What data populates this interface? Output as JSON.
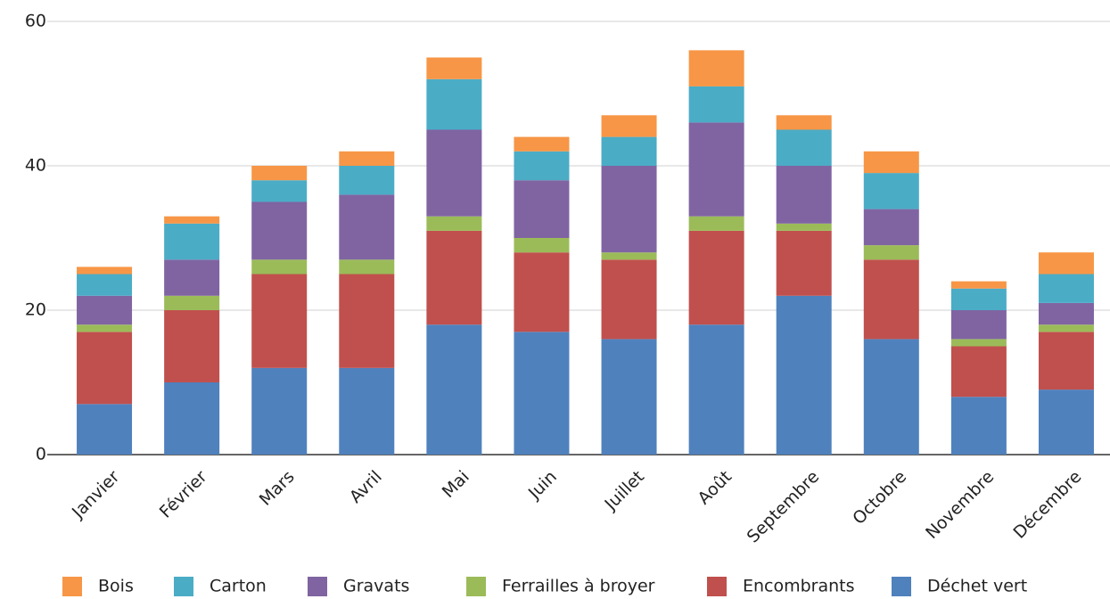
{
  "chart_data": {
    "type": "bar",
    "stacked": true,
    "categories": [
      "Janvier",
      "Février",
      "Mars",
      "Avril",
      "Mai",
      "Juin",
      "Juillet",
      "Août",
      "Septembre",
      "Octobre",
      "Novembre",
      "Décembre"
    ],
    "series": [
      {
        "name": "Déchet vert",
        "color": "#4f81bd",
        "values": [
          7,
          10,
          12,
          12,
          18,
          17,
          16,
          18,
          22,
          16,
          8,
          9
        ]
      },
      {
        "name": "Encombrants",
        "color": "#c0504d",
        "values": [
          10,
          10,
          13,
          13,
          13,
          11,
          11,
          13,
          9,
          11,
          7,
          8
        ]
      },
      {
        "name": "Ferrailles à broyer",
        "color": "#9bbb59",
        "values": [
          1,
          2,
          2,
          2,
          2,
          2,
          1,
          2,
          1,
          2,
          1,
          1
        ]
      },
      {
        "name": "Gravats",
        "color": "#8064a2",
        "values": [
          4,
          5,
          8,
          9,
          12,
          8,
          12,
          13,
          8,
          5,
          4,
          3
        ]
      },
      {
        "name": "Carton",
        "color": "#4bacc6",
        "values": [
          3,
          5,
          3,
          4,
          7,
          4,
          4,
          5,
          5,
          5,
          3,
          4
        ]
      },
      {
        "name": "Bois",
        "color": "#f79646",
        "values": [
          1,
          1,
          2,
          2,
          3,
          2,
          3,
          5,
          2,
          3,
          1,
          3
        ]
      }
    ],
    "ylim": [
      0,
      60
    ],
    "yticks": [
      0,
      20,
      40,
      60
    ],
    "grid": true,
    "legend": "bottom"
  }
}
